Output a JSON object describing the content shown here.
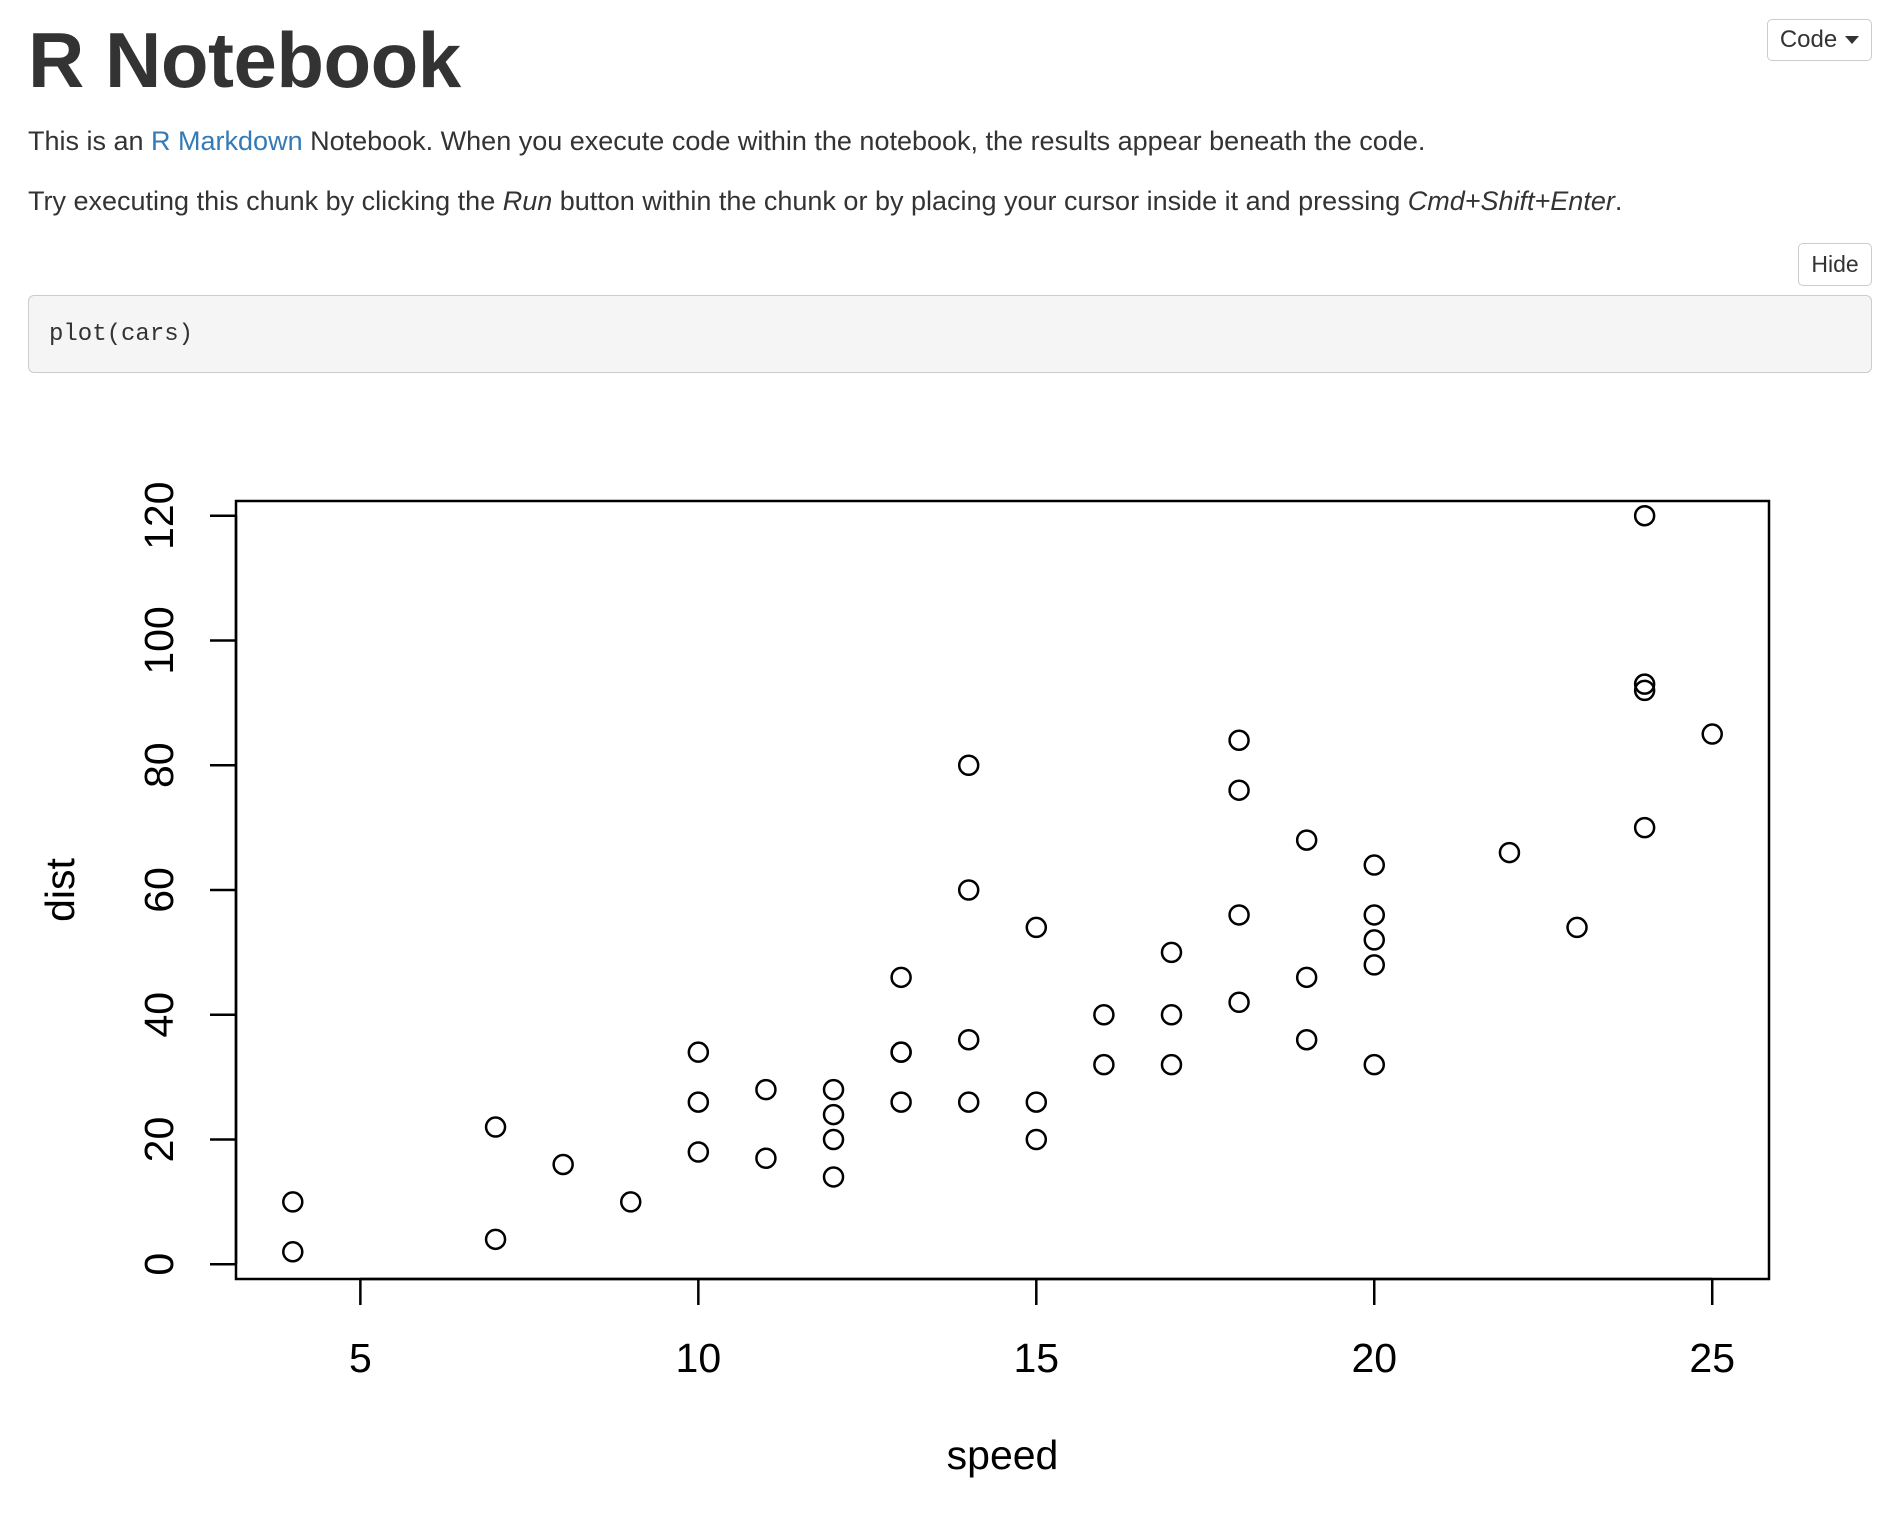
{
  "page": {
    "title": "R Notebook",
    "code_menu_label": "Code",
    "para1": {
      "before": "This is an ",
      "link": "R Markdown",
      "after": " Notebook. When you execute code within the notebook, the results appear beneath the code."
    },
    "para2": {
      "t1": "Try executing this chunk by clicking the ",
      "em1": "Run",
      "t2": " button within the chunk or by placing your cursor inside it and pressing ",
      "em2": "Cmd+Shift+Enter",
      "t3": "."
    },
    "hide_label": "Hide",
    "code": "plot(cars)"
  },
  "chart_data": {
    "type": "scatter",
    "title": "",
    "xlabel": "speed",
    "ylabel": "dist",
    "xlim": [
      3.16,
      25.84
    ],
    "ylim": [
      -2.36,
      122.36
    ],
    "xticks": [
      5,
      10,
      15,
      20,
      25
    ],
    "yticks": [
      0,
      20,
      40,
      60,
      80,
      100,
      120
    ],
    "grid": false,
    "x": [
      4,
      4,
      7,
      7,
      8,
      9,
      10,
      10,
      10,
      11,
      11,
      12,
      12,
      12,
      12,
      13,
      13,
      13,
      13,
      14,
      14,
      14,
      14,
      15,
      15,
      15,
      16,
      16,
      17,
      17,
      17,
      18,
      18,
      18,
      18,
      19,
      19,
      19,
      20,
      20,
      20,
      20,
      20,
      22,
      23,
      24,
      24,
      24,
      24,
      25
    ],
    "y": [
      2,
      10,
      4,
      22,
      16,
      10,
      18,
      26,
      34,
      17,
      28,
      14,
      20,
      24,
      28,
      26,
      34,
      34,
      46,
      26,
      36,
      60,
      80,
      20,
      26,
      54,
      32,
      40,
      32,
      40,
      50,
      42,
      56,
      76,
      84,
      36,
      46,
      68,
      32,
      48,
      52,
      56,
      64,
      66,
      54,
      70,
      92,
      93,
      120,
      85
    ]
  }
}
